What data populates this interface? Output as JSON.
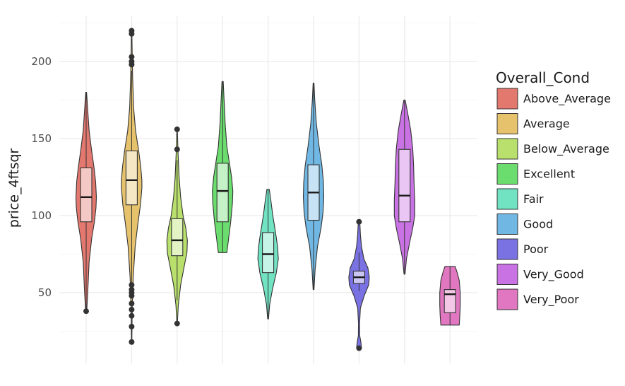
{
  "chart_data": {
    "type": "violin",
    "title": "",
    "xlabel": "",
    "ylabel": "price_4ftsqr",
    "ylim": [
      10,
      230
    ],
    "yticks": [
      50,
      100,
      150,
      200
    ],
    "x_tick_labels_shown": false,
    "grid": true,
    "legend": {
      "title": "Overall_Cond",
      "position": "right"
    },
    "categories": [
      "Above_Average",
      "Average",
      "Below_Average",
      "Excellent",
      "Fair",
      "Good",
      "Poor",
      "Very_Good",
      "Very_Poor"
    ],
    "colors": [
      "#e3786f",
      "#e6c26d",
      "#b9e06d",
      "#6bdd6f",
      "#71e3c3",
      "#70b7e3",
      "#7a72e3",
      "#c872e3",
      "#e077c0"
    ],
    "groups": [
      {
        "name": "Above_Average",
        "violin_min": 38,
        "violin_max": 180,
        "box": {
          "q1": 96,
          "median": 112,
          "q3": 131,
          "whisker_low": 38,
          "whisker_high": 180
        },
        "outliers": [
          38
        ],
        "density": [
          [
            38,
            0.03
          ],
          [
            50,
            0.08
          ],
          [
            70,
            0.15
          ],
          [
            85,
            0.28
          ],
          [
            96,
            0.42
          ],
          [
            105,
            0.5
          ],
          [
            112,
            0.52
          ],
          [
            122,
            0.48
          ],
          [
            131,
            0.4
          ],
          [
            142,
            0.28
          ],
          [
            155,
            0.15
          ],
          [
            170,
            0.07
          ],
          [
            180,
            0.02
          ]
        ]
      },
      {
        "name": "Average",
        "violin_min": 18,
        "violin_max": 220,
        "box": {
          "q1": 107,
          "median": 123,
          "q3": 142,
          "whisker_low": 55,
          "whisker_high": 194
        },
        "outliers": [
          18,
          28,
          35,
          39,
          43,
          48,
          50,
          52,
          55,
          198,
          200,
          203,
          218,
          220
        ],
        "density": [
          [
            18,
            0.01
          ],
          [
            40,
            0.03
          ],
          [
            60,
            0.08
          ],
          [
            80,
            0.18
          ],
          [
            95,
            0.32
          ],
          [
            107,
            0.45
          ],
          [
            118,
            0.52
          ],
          [
            123,
            0.52
          ],
          [
            132,
            0.46
          ],
          [
            142,
            0.36
          ],
          [
            155,
            0.2
          ],
          [
            170,
            0.1
          ],
          [
            190,
            0.05
          ],
          [
            205,
            0.03
          ],
          [
            220,
            0.01
          ]
        ]
      },
      {
        "name": "Below_Average",
        "violin_min": 30,
        "violin_max": 156,
        "box": {
          "q1": 74,
          "median": 84,
          "q3": 98,
          "whisker_low": 45,
          "whisker_high": 136
        },
        "outliers": [
          30,
          143,
          156
        ],
        "density": [
          [
            30,
            0.01
          ],
          [
            42,
            0.06
          ],
          [
            55,
            0.18
          ],
          [
            67,
            0.36
          ],
          [
            76,
            0.5
          ],
          [
            84,
            0.52
          ],
          [
            92,
            0.44
          ],
          [
            100,
            0.3
          ],
          [
            112,
            0.18
          ],
          [
            125,
            0.1
          ],
          [
            140,
            0.05
          ],
          [
            156,
            0.01
          ]
        ]
      },
      {
        "name": "Excellent",
        "violin_min": 76,
        "violin_max": 187,
        "box": {
          "q1": 96,
          "median": 116,
          "q3": 134,
          "whisker_low": 76,
          "whisker_high": 187
        },
        "outliers": [],
        "density": [
          [
            76,
            0.2
          ],
          [
            85,
            0.28
          ],
          [
            96,
            0.38
          ],
          [
            108,
            0.46
          ],
          [
            116,
            0.48
          ],
          [
            125,
            0.42
          ],
          [
            134,
            0.32
          ],
          [
            145,
            0.2
          ],
          [
            160,
            0.12
          ],
          [
            175,
            0.07
          ],
          [
            187,
            0.03
          ]
        ]
      },
      {
        "name": "Fair",
        "violin_min": 33,
        "violin_max": 117,
        "box": {
          "q1": 63,
          "median": 75,
          "q3": 89,
          "whisker_low": 33,
          "whisker_high": 117
        },
        "outliers": [],
        "density": [
          [
            33,
            0.02
          ],
          [
            42,
            0.08
          ],
          [
            52,
            0.22
          ],
          [
            63,
            0.42
          ],
          [
            72,
            0.52
          ],
          [
            80,
            0.48
          ],
          [
            89,
            0.38
          ],
          [
            100,
            0.24
          ],
          [
            110,
            0.14
          ],
          [
            117,
            0.06
          ]
        ]
      },
      {
        "name": "Good",
        "violin_min": 52,
        "violin_max": 186,
        "box": {
          "q1": 97,
          "median": 115,
          "q3": 133,
          "whisker_low": 52,
          "whisker_high": 186
        },
        "outliers": [],
        "density": [
          [
            52,
            0.02
          ],
          [
            65,
            0.08
          ],
          [
            80,
            0.2
          ],
          [
            92,
            0.38
          ],
          [
            102,
            0.48
          ],
          [
            112,
            0.52
          ],
          [
            122,
            0.5
          ],
          [
            133,
            0.42
          ],
          [
            145,
            0.28
          ],
          [
            160,
            0.14
          ],
          [
            175,
            0.06
          ],
          [
            186,
            0.02
          ]
        ]
      },
      {
        "name": "Poor",
        "violin_min": 14,
        "violin_max": 96,
        "box": {
          "q1": 56,
          "median": 60,
          "q3": 64,
          "whisker_low": 51,
          "whisker_high": 76
        },
        "outliers": [
          14,
          96
        ],
        "density": [
          [
            14,
            0.22
          ],
          [
            18,
            0.16
          ],
          [
            22,
            0.06
          ],
          [
            30,
            0.05
          ],
          [
            40,
            0.12
          ],
          [
            48,
            0.45
          ],
          [
            55,
            0.85
          ],
          [
            60,
            0.9
          ],
          [
            66,
            0.78
          ],
          [
            72,
            0.42
          ],
          [
            80,
            0.22
          ],
          [
            88,
            0.12
          ],
          [
            94,
            0.08
          ],
          [
            96,
            0.05
          ]
        ]
      },
      {
        "name": "Very_Good",
        "violin_min": 62,
        "violin_max": 175,
        "box": {
          "q1": 96,
          "median": 113,
          "q3": 143,
          "whisker_low": 62,
          "whisker_high": 175
        },
        "outliers": [],
        "density": [
          [
            62,
            0.03
          ],
          [
            72,
            0.12
          ],
          [
            82,
            0.3
          ],
          [
            92,
            0.5
          ],
          [
            100,
            0.62
          ],
          [
            110,
            0.62
          ],
          [
            120,
            0.58
          ],
          [
            132,
            0.55
          ],
          [
            143,
            0.5
          ],
          [
            155,
            0.38
          ],
          [
            165,
            0.22
          ],
          [
            175,
            0.04
          ]
        ]
      },
      {
        "name": "Very_Poor",
        "violin_min": 29,
        "violin_max": 67,
        "box": {
          "q1": 37,
          "median": 49,
          "q3": 52,
          "whisker_low": 29,
          "whisker_high": 67
        },
        "outliers": [],
        "density": [
          [
            29,
            0.9
          ],
          [
            35,
            0.96
          ],
          [
            42,
            1.0
          ],
          [
            50,
            1.0
          ],
          [
            58,
            0.9
          ],
          [
            63,
            0.7
          ],
          [
            67,
            0.5
          ]
        ]
      }
    ]
  }
}
